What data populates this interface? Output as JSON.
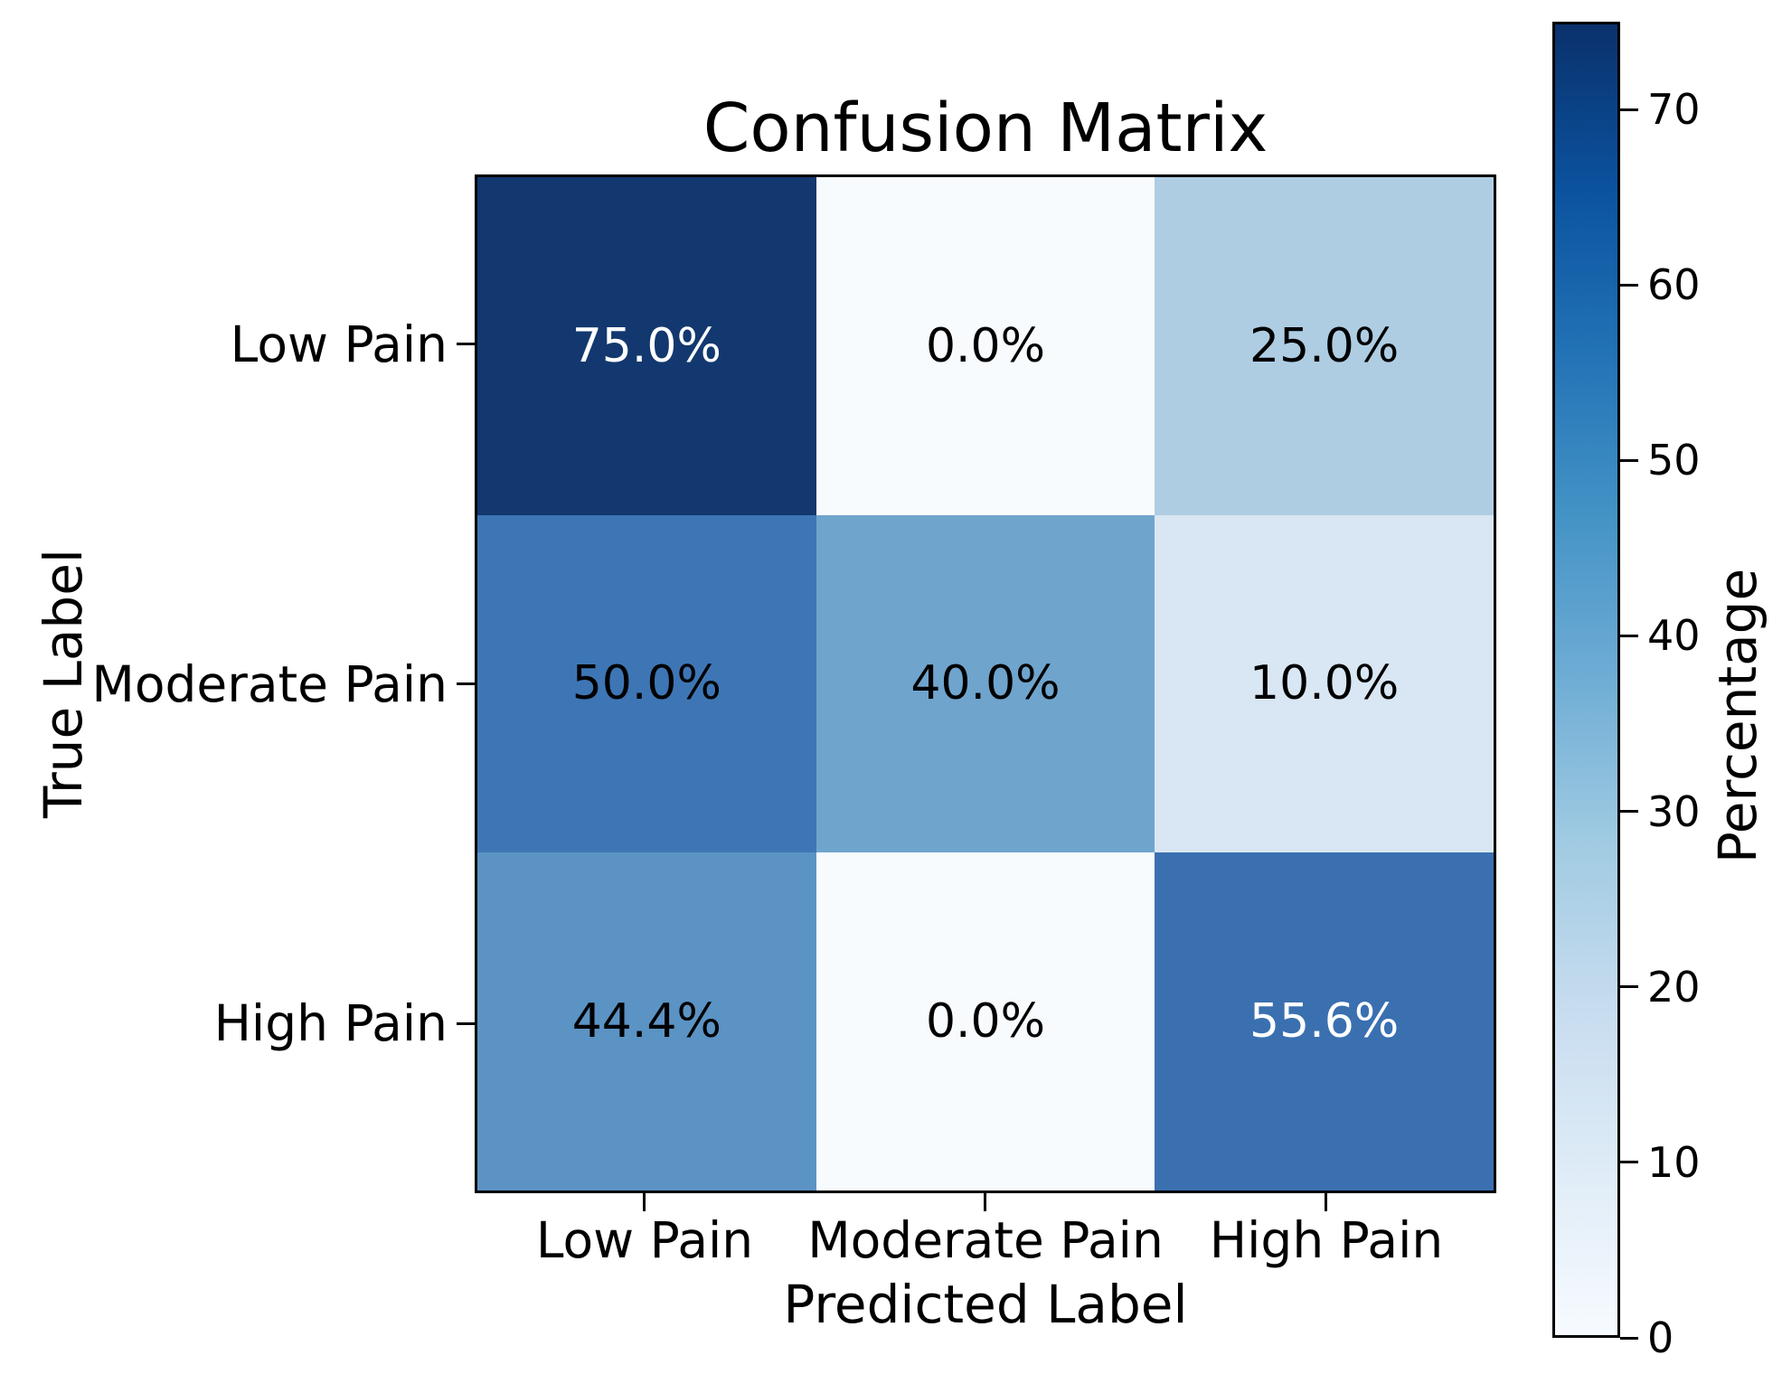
{
  "chart_data": {
    "type": "heatmap",
    "title": "Confusion Matrix",
    "xlabel": "Predicted Label",
    "ylabel": "True Label",
    "x_categories": [
      "Low Pain",
      "Moderate Pain",
      "High Pain"
    ],
    "y_categories": [
      "Low Pain",
      "Moderate Pain",
      "High Pain"
    ],
    "values_percent": [
      [
        75.0,
        0.0,
        25.0
      ],
      [
        50.0,
        40.0,
        10.0
      ],
      [
        44.4,
        0.0,
        55.6
      ]
    ],
    "cell_labels": [
      [
        "75.0%",
        "0.0%",
        "25.0%"
      ],
      [
        "50.0%",
        "40.0%",
        "10.0%"
      ],
      [
        "44.4%",
        "0.0%",
        "55.6%"
      ]
    ],
    "cell_colors": [
      [
        "#12386f",
        "#f7fbfe",
        "#aecde3"
      ],
      [
        "#3e76b5",
        "#6fa4cd",
        "#d9e6f3"
      ],
      [
        "#5b93c4",
        "#f7fbfe",
        "#3a70b0"
      ]
    ],
    "cell_text_colors": [
      [
        "#ffffff",
        "#000000",
        "#000000"
      ],
      [
        "#000000",
        "#000000",
        "#000000"
      ],
      [
        "#000000",
        "#000000",
        "#ffffff"
      ]
    ],
    "colormap": "Blues",
    "grid": false,
    "colorbar": {
      "label": "Percentage",
      "vmin": 0,
      "vmax": 75,
      "ticks": [
        0,
        10,
        20,
        30,
        40,
        50,
        60,
        70
      ],
      "gradient_stops": [
        {
          "at": 0.0,
          "color": "#f7fbff"
        },
        {
          "at": 0.125,
          "color": "#dfecf7"
        },
        {
          "at": 0.25,
          "color": "#c7dcef"
        },
        {
          "at": 0.375,
          "color": "#a0cbe2"
        },
        {
          "at": 0.5,
          "color": "#6fadd5"
        },
        {
          "at": 0.625,
          "color": "#4493c6"
        },
        {
          "at": 0.75,
          "color": "#2272b6"
        },
        {
          "at": 0.875,
          "color": "#0b529e"
        },
        {
          "at": 1.0,
          "color": "#0a316c"
        }
      ]
    }
  }
}
